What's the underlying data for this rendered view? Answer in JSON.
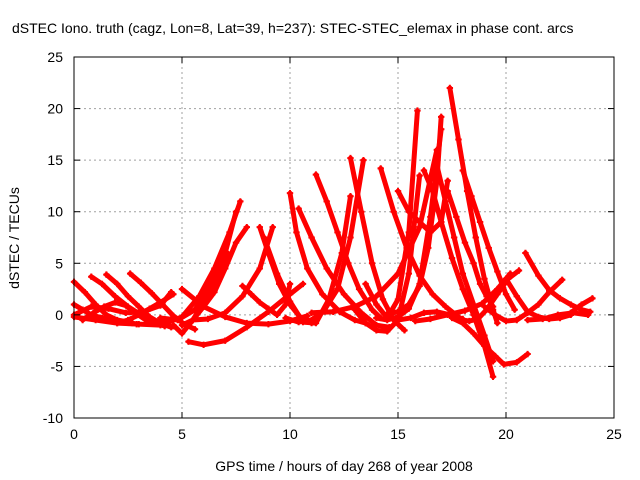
{
  "chart_data": {
    "type": "scatter",
    "title": "dSTEC Iono. truth (cagz, Lon=8, Lat=39, h=237): STEC-STEC_elemax in phase cont. arcs",
    "xlabel": "GPS time / hours of day 268 of year 2008",
    "ylabel": "dSTEC  / TECUs",
    "xlim": [
      0,
      25
    ],
    "ylim": [
      -10,
      25
    ],
    "xticks": [
      0,
      5,
      10,
      15,
      20,
      25
    ],
    "yticks": [
      -10,
      -5,
      0,
      5,
      10,
      15,
      20,
      25
    ],
    "grid": true,
    "marker": "+",
    "color": "#ff0000",
    "series": [
      {
        "x": [
          0.0,
          0.5,
          1.0,
          1.5,
          2.0,
          2.5,
          2.9
        ],
        "y": [
          3.2,
          2.2,
          1.0,
          0.0,
          -0.5,
          -0.7,
          -0.9
        ]
      },
      {
        "x": [
          0.0,
          0.4,
          0.8,
          1.3,
          1.8,
          2.3,
          2.7
        ],
        "y": [
          1.0,
          0.5,
          0.0,
          -0.3,
          -0.5,
          -0.7,
          -0.8
        ]
      },
      {
        "x": [
          0.0,
          1.0,
          2.0,
          3.0,
          4.0,
          4.6
        ],
        "y": [
          -0.2,
          -0.5,
          -0.8,
          -0.9,
          -1.0,
          -1.1
        ]
      },
      {
        "x": [
          0.0,
          0.8,
          1.6,
          2.4,
          3.2,
          4.0,
          4.5
        ],
        "y": [
          0.0,
          0.8,
          0.6,
          0.2,
          0.3,
          0.9,
          2.2
        ]
      },
      {
        "x": [
          0.4,
          0.9,
          1.4,
          1.9,
          2.4,
          2.9,
          3.4
        ],
        "y": [
          -0.5,
          0.2,
          0.8,
          1.2,
          0.9,
          0.1,
          -0.6
        ]
      },
      {
        "x": [
          0.8,
          1.3,
          1.9,
          2.5,
          3.1,
          3.7,
          4.2
        ],
        "y": [
          3.7,
          3.0,
          1.8,
          0.8,
          0.0,
          -0.6,
          -1.1
        ]
      },
      {
        "x": [
          1.5,
          2.0,
          2.5,
          3.0,
          3.5,
          4.0,
          4.5
        ],
        "y": [
          3.9,
          3.0,
          1.8,
          0.8,
          -0.2,
          -0.8,
          -1.2
        ]
      },
      {
        "x": [
          2.6,
          3.1,
          3.6,
          4.1,
          4.6,
          5.1,
          5.6
        ],
        "y": [
          4.0,
          3.1,
          2.1,
          1.0,
          -0.1,
          -0.9,
          -1.4
        ]
      },
      {
        "x": [
          2.0,
          2.5,
          3.0,
          3.5,
          4.0,
          4.6
        ],
        "y": [
          -0.8,
          -0.5,
          0.0,
          0.6,
          1.2,
          2.0
        ]
      },
      {
        "x": [
          3.5,
          4.2,
          5.0,
          5.8,
          6.5,
          7.2,
          7.7
        ],
        "y": [
          -0.5,
          -0.8,
          -0.2,
          1.8,
          4.5,
          8.0,
          11.0
        ]
      },
      {
        "x": [
          4.0,
          4.8,
          5.6,
          6.4,
          7.0,
          7.5
        ],
        "y": [
          -0.3,
          -0.5,
          0.5,
          3.2,
          6.0,
          10.0
        ]
      },
      {
        "x": [
          4.6,
          5.0,
          5.5,
          6.0,
          6.6,
          7.1
        ],
        "y": [
          -1.0,
          -1.8,
          -0.5,
          1.2,
          3.5,
          6.0
        ]
      },
      {
        "x": [
          5.0,
          5.5,
          6.0,
          6.5,
          7.0,
          7.5,
          8.0
        ],
        "y": [
          -1.0,
          -0.5,
          0.8,
          2.2,
          4.5,
          7.0,
          8.5
        ]
      },
      {
        "x": [
          5.3,
          6.0,
          7.0,
          8.0,
          9.0,
          10.0,
          10.6
        ],
        "y": [
          -2.6,
          -2.9,
          -2.5,
          -1.2,
          0.3,
          2.0,
          3.0
        ]
      },
      {
        "x": [
          5.0,
          6.0,
          7.0,
          8.0,
          9.0,
          10.0,
          10.8
        ],
        "y": [
          2.5,
          0.8,
          -0.2,
          -0.8,
          -0.9,
          -0.6,
          -0.1
        ]
      },
      {
        "x": [
          5.5,
          6.2,
          7.0,
          7.8,
          8.6,
          9.2
        ],
        "y": [
          -0.5,
          -0.4,
          0.2,
          1.8,
          4.5,
          8.5
        ]
      },
      {
        "x": [
          7.8,
          8.2,
          8.6,
          9.0,
          9.4,
          9.8,
          10.0
        ],
        "y": [
          2.8,
          2.0,
          1.2,
          0.6,
          0.0,
          1.0,
          3.0
        ]
      },
      {
        "x": [
          8.6,
          9.0,
          9.5,
          10.0,
          10.5,
          11.0
        ],
        "y": [
          8.5,
          6.0,
          3.0,
          1.0,
          -0.3,
          -0.8
        ]
      },
      {
        "x": [
          8.8,
          9.4,
          10.0,
          10.6,
          11.2,
          11.8,
          12.4,
          12.8
        ],
        "y": [
          7.5,
          4.0,
          1.3,
          -0.7,
          -0.8,
          1.5,
          6.0,
          11.5
        ]
      },
      {
        "x": [
          9.8,
          10.4,
          11.0,
          11.6,
          12.2,
          12.8,
          13.4
        ],
        "y": [
          -0.3,
          -0.7,
          -0.5,
          0.5,
          2.5,
          7.5,
          15.0
        ]
      },
      {
        "x": [
          10.0,
          10.3,
          10.8,
          11.5,
          12.3,
          13.0,
          13.5
        ],
        "y": [
          11.8,
          8.0,
          4.5,
          2.0,
          0.3,
          -0.5,
          -0.8
        ]
      },
      {
        "x": [
          10.4,
          11.0,
          11.7,
          12.5,
          13.3,
          14.0,
          14.6
        ],
        "y": [
          10.3,
          7.5,
          4.5,
          2.0,
          0.2,
          -1.0,
          -1.2
        ]
      },
      {
        "x": [
          11.2,
          11.7,
          12.2,
          12.7,
          13.2,
          13.8,
          14.2
        ],
        "y": [
          13.6,
          11.0,
          8.0,
          5.0,
          2.5,
          0.5,
          -0.3
        ]
      },
      {
        "x": [
          12.8,
          13.3,
          13.8,
          14.3,
          14.8,
          15.3
        ],
        "y": [
          15.2,
          10.0,
          5.0,
          1.5,
          -0.5,
          -1.5
        ]
      },
      {
        "x": [
          11.0,
          12.0,
          13.0,
          14.0,
          15.0,
          16.0,
          16.8
        ],
        "y": [
          0.2,
          0.3,
          0.8,
          1.8,
          4.0,
          8.5,
          16.0
        ]
      },
      {
        "x": [
          13.0,
          13.5,
          14.0,
          14.5,
          15.0,
          15.5,
          16.0
        ],
        "y": [
          0.5,
          -0.8,
          -1.5,
          -1.6,
          -0.5,
          4.0,
          13.5
        ]
      },
      {
        "x": [
          13.5,
          14.0,
          14.5,
          15.0,
          15.5,
          15.9
        ],
        "y": [
          3.0,
          1.0,
          -0.3,
          1.5,
          8.0,
          19.8
        ]
      },
      {
        "x": [
          14.0,
          14.5,
          15.0,
          15.5,
          16.0,
          16.5,
          17.0
        ],
        "y": [
          -0.3,
          -0.5,
          -0.2,
          0.6,
          3.0,
          9.5,
          18.0
        ]
      },
      {
        "x": [
          14.5,
          15.0,
          15.5,
          16.0,
          16.4,
          16.8,
          17.0
        ],
        "y": [
          0.1,
          0.3,
          1.0,
          2.8,
          6.5,
          13.0,
          19.2
        ]
      },
      {
        "x": [
          15.0,
          15.5,
          16.0,
          16.5,
          17.0,
          17.3
        ],
        "y": [
          12.0,
          10.0,
          9.0,
          8.0,
          9.0,
          13.0
        ]
      },
      {
        "x": [
          14.2,
          14.8,
          15.4,
          16.0,
          16.6,
          17.2,
          17.8
        ],
        "y": [
          14.2,
          10.0,
          6.5,
          3.8,
          2.0,
          0.8,
          -0.2
        ]
      },
      {
        "x": [
          15.0,
          15.6,
          16.2,
          16.8,
          17.4,
          18.0
        ],
        "y": [
          -0.5,
          -0.3,
          0.2,
          0.3,
          0.0,
          -0.4
        ]
      },
      {
        "x": [
          15.8,
          16.5,
          17.3,
          18.1,
          18.9,
          19.6,
          20.2
        ],
        "y": [
          -0.6,
          -0.4,
          0.0,
          0.4,
          1.1,
          2.5,
          4.0
        ]
      },
      {
        "x": [
          16.2,
          16.6,
          17.0,
          17.5,
          18.0,
          18.5,
          19.0,
          19.4
        ],
        "y": [
          14.0,
          12.0,
          9.0,
          5.5,
          2.5,
          0.0,
          -3.0,
          -6.0
        ]
      },
      {
        "x": [
          16.8,
          17.2,
          17.6,
          18.0,
          18.5,
          19.0,
          19.4
        ],
        "y": [
          14.5,
          11.0,
          7.5,
          4.0,
          1.0,
          -2.0,
          -4.5
        ]
      },
      {
        "x": [
          17.4,
          17.8,
          18.2,
          18.6,
          19.0,
          19.4,
          19.6
        ],
        "y": [
          22.0,
          17.0,
          12.0,
          7.5,
          3.5,
          0.5,
          -0.8
        ]
      },
      {
        "x": [
          17.3,
          17.7,
          18.1,
          18.5,
          18.8,
          19.1,
          19.4
        ],
        "y": [
          12.0,
          9.5,
          7.0,
          5.0,
          3.0,
          1.8,
          0.8
        ]
      },
      {
        "x": [
          18.0,
          18.4,
          18.8,
          19.2,
          19.6,
          20.0,
          20.4
        ],
        "y": [
          14.0,
          11.5,
          9.0,
          6.5,
          4.2,
          2.0,
          0.5
        ]
      },
      {
        "x": [
          17.5,
          18.0,
          18.5,
          19.0,
          19.5,
          19.9,
          20.5,
          21.0
        ],
        "y": [
          -0.3,
          -0.8,
          -1.8,
          -3.0,
          -4.0,
          -4.8,
          -4.6,
          -3.8
        ]
      },
      {
        "x": [
          18.0,
          18.3,
          18.7,
          19.1,
          19.6,
          20.1,
          20.6
        ],
        "y": [
          -0.5,
          -0.6,
          -0.4,
          0.5,
          2.0,
          3.5,
          4.3
        ]
      },
      {
        "x": [
          19.0,
          19.5,
          20.0,
          20.5,
          21.0,
          21.5,
          22.0,
          22.6
        ],
        "y": [
          0.8,
          0.0,
          -0.6,
          -0.5,
          0.2,
          1.0,
          2.2,
          3.4
        ]
      },
      {
        "x": [
          20.0,
          20.5,
          21.0,
          21.5,
          22.0,
          22.5,
          23.0
        ],
        "y": [
          3.5,
          1.8,
          0.3,
          -0.2,
          -0.4,
          -0.3,
          0.0
        ]
      },
      {
        "x": [
          20.9,
          21.5,
          22.0,
          22.5,
          23.0,
          23.5,
          23.9
        ],
        "y": [
          6.0,
          3.8,
          2.4,
          1.6,
          1.0,
          0.5,
          0.3
        ]
      },
      {
        "x": [
          22.0,
          22.5,
          23.0,
          23.5,
          24.0
        ],
        "y": [
          -0.3,
          -0.3,
          0.2,
          1.0,
          1.6
        ]
      },
      {
        "x": [
          21.0,
          21.7,
          22.4,
          23.1,
          23.8
        ],
        "y": [
          -0.5,
          -0.4,
          0.0,
          0.2,
          0.0
        ]
      }
    ]
  }
}
